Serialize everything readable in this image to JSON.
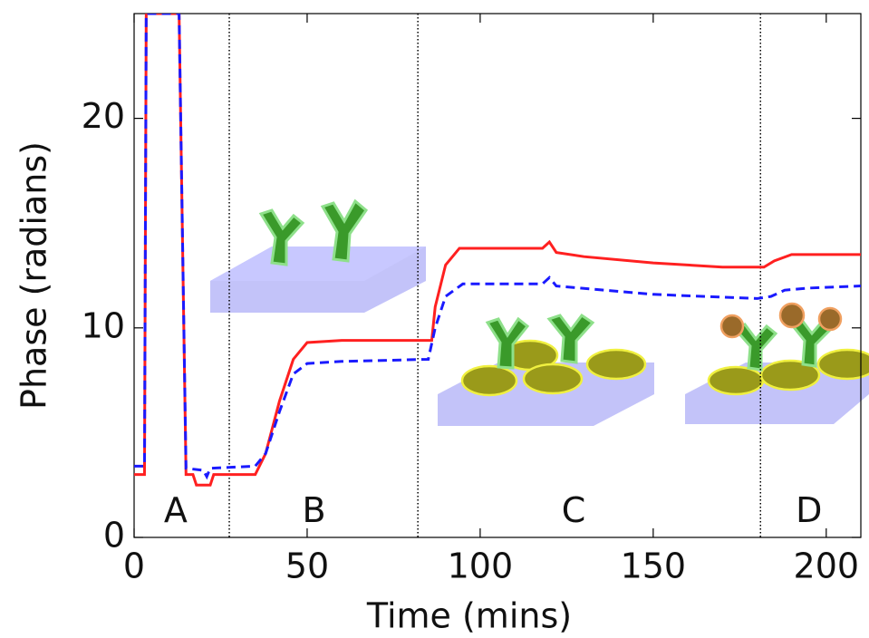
{
  "chart_data": {
    "type": "line",
    "xlabel": "Time (mins)",
    "ylabel": "Phase (radians)",
    "xlim": [
      0,
      210
    ],
    "ylim": [
      0,
      25
    ],
    "xticks": [
      0,
      50,
      100,
      150,
      200
    ],
    "yticks": [
      0,
      10,
      20
    ],
    "series": [
      {
        "color": "#ff2020",
        "dash": "solid",
        "x": [
          0,
          3,
          3.5,
          13,
          15,
          17,
          18,
          22,
          23,
          35,
          38,
          42,
          46,
          50,
          60,
          86,
          87,
          90,
          94,
          100,
          118,
          120,
          122,
          130,
          150,
          170,
          182,
          185,
          190,
          210
        ],
        "values": [
          3,
          3,
          25,
          25,
          3,
          3,
          2.5,
          2.5,
          3,
          3,
          4,
          6.5,
          8.5,
          9.3,
          9.4,
          9.4,
          11,
          13,
          13.8,
          13.8,
          13.8,
          14.1,
          13.6,
          13.4,
          13.1,
          12.9,
          12.9,
          13.2,
          13.5,
          13.5
        ]
      },
      {
        "color": "#1a1aff",
        "dash": "dashed",
        "x": [
          0,
          3,
          3.5,
          13,
          15,
          20,
          21,
          22,
          35,
          38,
          42,
          46,
          50,
          60,
          85,
          87,
          90,
          95,
          118,
          120,
          122,
          150,
          180,
          184,
          188,
          195,
          210
        ],
        "values": [
          3.4,
          3.4,
          25,
          25,
          3.3,
          3.2,
          2.9,
          3.3,
          3.4,
          4,
          6,
          7.8,
          8.3,
          8.4,
          8.5,
          10,
          11.5,
          12.1,
          12.1,
          12.4,
          12,
          11.6,
          11.4,
          11.5,
          11.8,
          11.9,
          12
        ]
      }
    ],
    "region_lines": [
      27.5,
      82,
      181
    ],
    "regions": [
      {
        "label": "A",
        "x": 12,
        "y": 1.2
      },
      {
        "label": "B",
        "x": 52,
        "y": 1.2
      },
      {
        "label": "C",
        "x": 127,
        "y": 1.2
      },
      {
        "label": "D",
        "x": 195,
        "y": 1.2
      }
    ]
  }
}
